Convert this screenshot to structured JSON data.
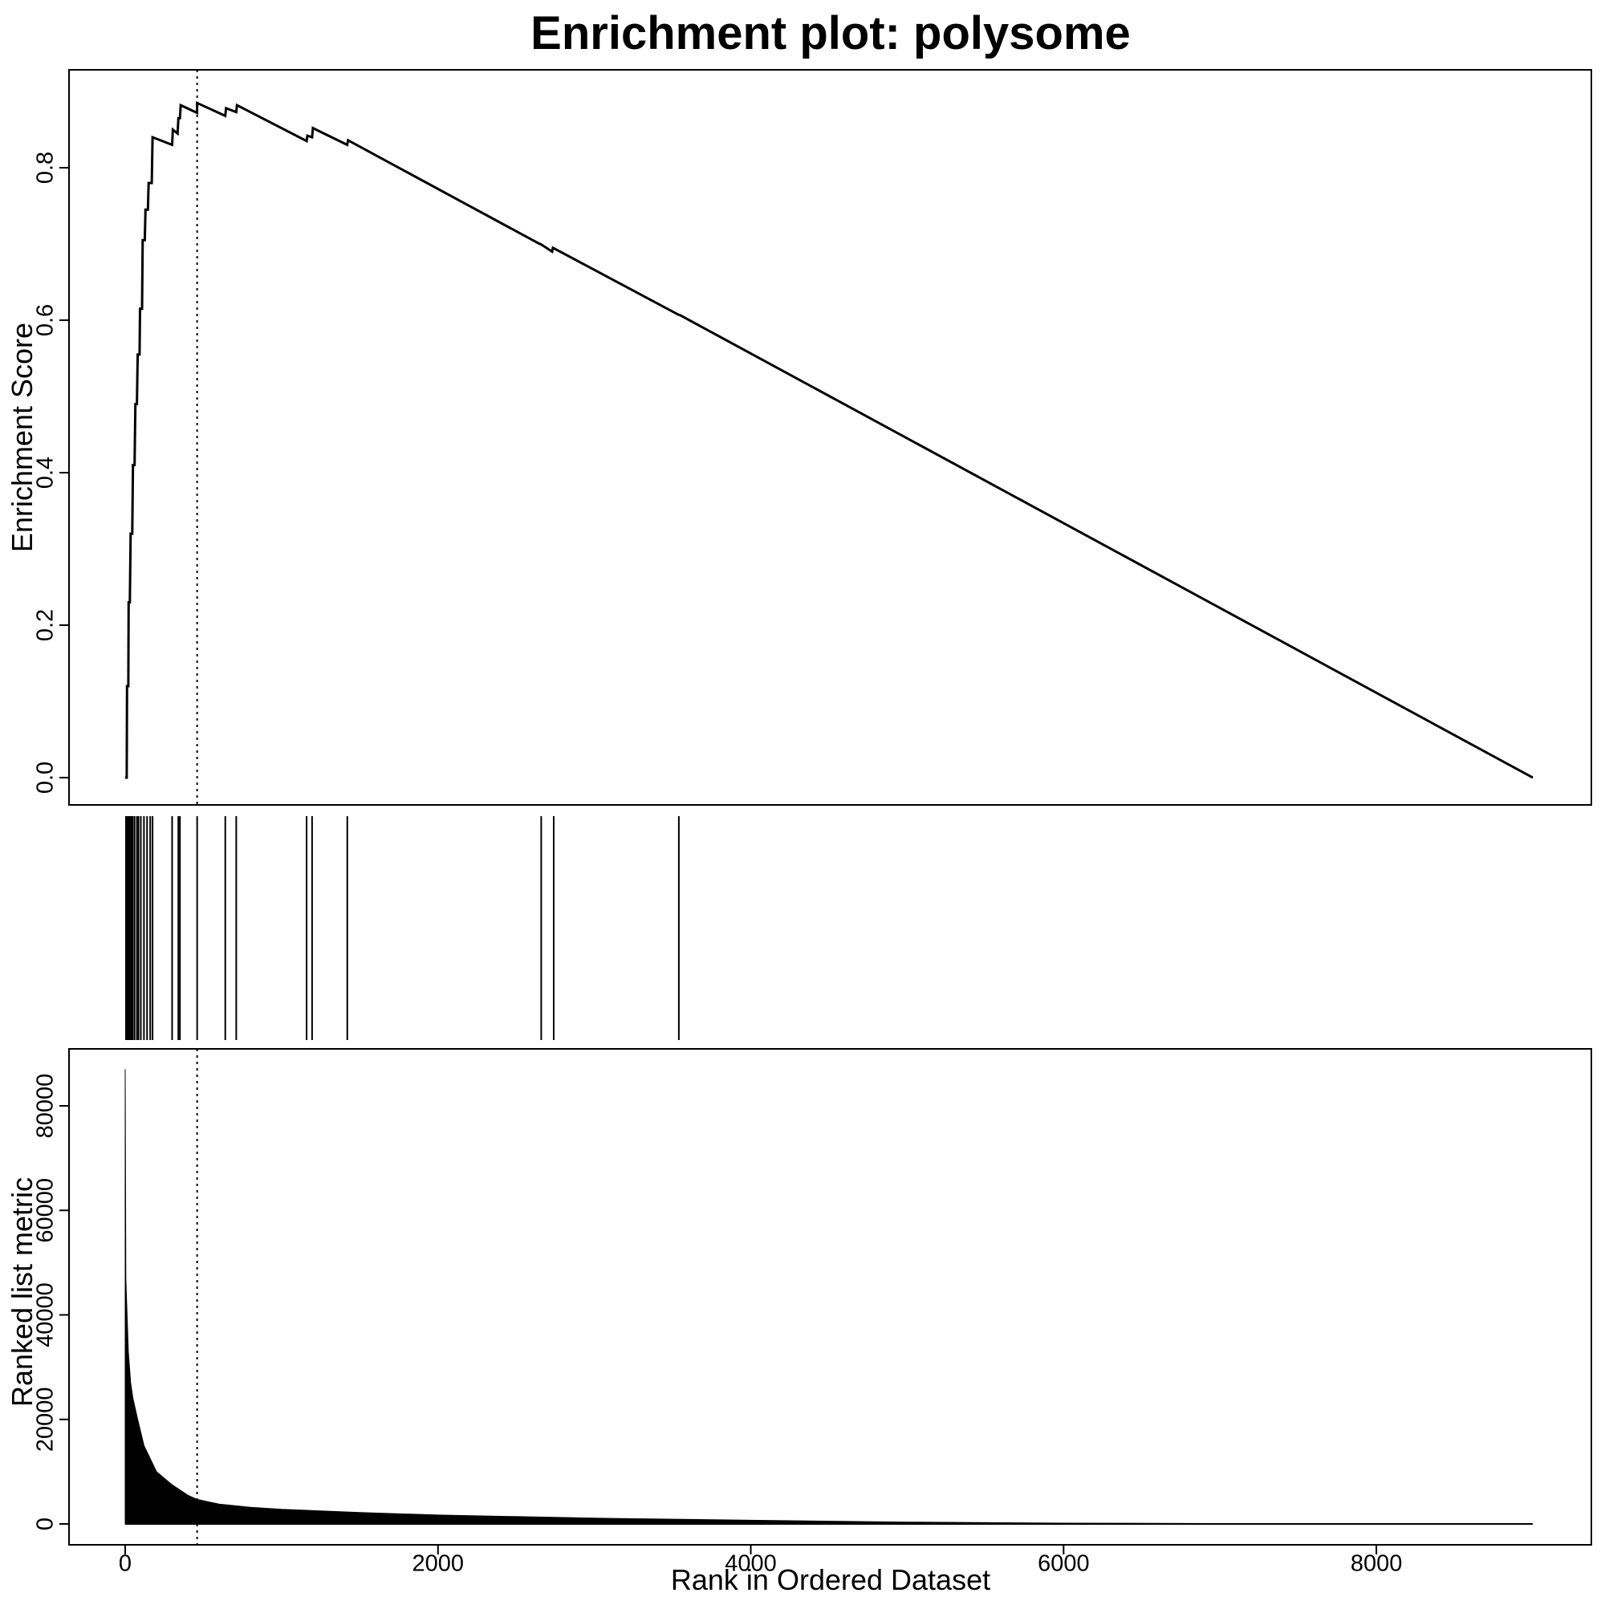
{
  "chart_data": [
    {
      "type": "line",
      "title": "Enrichment plot: polysome",
      "ylabel": "Enrichment Score",
      "xlim": [
        0,
        9000
      ],
      "ylim": [
        0,
        0.9
      ],
      "yticks": [
        0.0,
        0.2,
        0.4,
        0.6,
        0.8
      ],
      "ytick_labels": [
        "0.0",
        "0.2",
        "0.4",
        "0.6",
        "0.8"
      ],
      "peak_rank": 460,
      "series": [
        {
          "x": [
            0,
            10,
            12,
            20,
            22,
            30,
            35,
            45,
            50,
            60,
            65,
            75,
            80,
            92,
            95,
            108,
            112,
            125,
            130,
            145,
            150,
            170,
            175,
            300,
            305,
            335,
            340,
            350,
            355,
            460,
            460,
            640,
            645,
            710,
            715,
            1160,
            1165,
            1195,
            1200,
            1420,
            1425,
            2650,
            2655,
            2730,
            2735,
            3540,
            3545,
            9000
          ],
          "y": [
            0.0,
            0.0,
            0.12,
            0.12,
            0.23,
            0.23,
            0.32,
            0.32,
            0.41,
            0.41,
            0.49,
            0.49,
            0.555,
            0.555,
            0.615,
            0.615,
            0.705,
            0.705,
            0.745,
            0.745,
            0.78,
            0.78,
            0.84,
            0.83,
            0.85,
            0.845,
            0.865,
            0.865,
            0.882,
            0.872,
            0.885,
            0.868,
            0.878,
            0.873,
            0.882,
            0.835,
            0.842,
            0.84,
            0.852,
            0.83,
            0.836,
            0.7,
            0.7,
            0.69,
            0.695,
            0.607,
            0.607,
            0.0
          ]
        }
      ]
    },
    {
      "type": "bar",
      "xlabel": "Rank in Ordered Dataset",
      "ylabel": "Ranked list metric",
      "xlim": [
        0,
        9000
      ],
      "ylim": [
        0,
        87000
      ],
      "xticks": [
        0,
        2000,
        4000,
        6000,
        8000
      ],
      "xtick_labels": [
        "0",
        "2000",
        "4000",
        "6000",
        "8000"
      ],
      "yticks": [
        0,
        20000,
        40000,
        60000,
        80000
      ],
      "ytick_labels": [
        "0",
        "20000",
        "40000",
        "60000",
        "80000"
      ],
      "gene_set_hits": [
        5,
        10,
        18,
        25,
        32,
        40,
        48,
        60,
        75,
        85,
        100,
        120,
        140,
        160,
        175,
        300,
        340,
        350,
        460,
        640,
        710,
        1160,
        1195,
        1420,
        2660,
        2740,
        3540
      ],
      "metric_x": [
        0,
        4,
        10,
        20,
        35,
        50,
        80,
        120,
        160,
        200,
        300,
        400,
        460,
        600,
        800,
        1000,
        1500,
        2000,
        3000,
        4000,
        5000,
        6000,
        7000,
        8000,
        9000
      ],
      "metric_y": [
        87000,
        47000,
        42000,
        33000,
        27000,
        24000,
        20000,
        15000,
        12500,
        10000,
        7500,
        5500,
        4700,
        3800,
        3200,
        2800,
        2200,
        1700,
        1100,
        700,
        350,
        150,
        80,
        30,
        0
      ]
    }
  ]
}
